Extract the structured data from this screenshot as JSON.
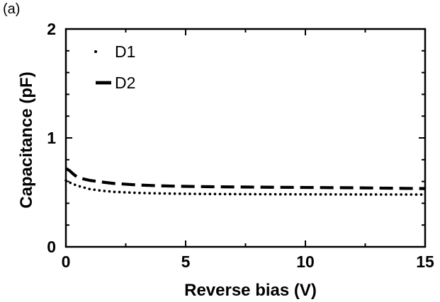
{
  "panel_label": "(a)",
  "chart_data": {
    "type": "line",
    "title": "",
    "xlabel": "Reverse bias (V)",
    "ylabel": "Capacitance (pF)",
    "xlim": [
      0,
      15
    ],
    "ylim": [
      0,
      2
    ],
    "xticks": [
      0,
      5,
      10,
      15
    ],
    "xtick_labels": [
      "0",
      "5",
      "10",
      "15"
    ],
    "yticks": [
      0,
      1,
      2
    ],
    "ytick_labels": [
      "0",
      "1",
      "2"
    ],
    "grid": false,
    "legend_position": "top-left",
    "series": [
      {
        "name": "D1",
        "style": "dotted",
        "color": "#000000",
        "x": [
          0,
          0.25,
          0.5,
          1,
          1.5,
          2,
          3,
          4,
          5,
          6,
          8,
          10,
          12,
          15
        ],
        "y": [
          0.61,
          0.58,
          0.56,
          0.53,
          0.515,
          0.505,
          0.495,
          0.49,
          0.487,
          0.485,
          0.483,
          0.482,
          0.481,
          0.48
        ]
      },
      {
        "name": "D2",
        "style": "dashed",
        "color": "#000000",
        "x": [
          0,
          0.15,
          0.3,
          0.5,
          1,
          1.5,
          2,
          3,
          4,
          5,
          6,
          8,
          10,
          12,
          15
        ],
        "y": [
          0.72,
          0.7,
          0.67,
          0.635,
          0.61,
          0.595,
          0.582,
          0.568,
          0.56,
          0.555,
          0.552,
          0.548,
          0.545,
          0.542,
          0.535
        ]
      }
    ]
  }
}
